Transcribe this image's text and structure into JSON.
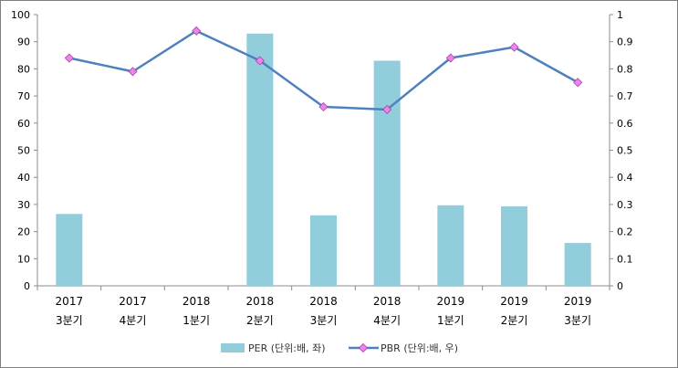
{
  "chart_data": {
    "type": "bar+line",
    "categories": [
      [
        "2017",
        "3분기"
      ],
      [
        "2017",
        "4분기"
      ],
      [
        "2018",
        "1분기"
      ],
      [
        "2018",
        "2분기"
      ],
      [
        "2018",
        "3분기"
      ],
      [
        "2018",
        "4분기"
      ],
      [
        "2019",
        "1분기"
      ],
      [
        "2019",
        "2분기"
      ],
      [
        "2019",
        "3분기"
      ]
    ],
    "series": [
      {
        "name": "PER (단위:배, 좌)",
        "type": "bar",
        "axis": "left",
        "color": "#92CDDC",
        "values": [
          26.5,
          null,
          null,
          93,
          26,
          83,
          29.7,
          29.3,
          15.8
        ]
      },
      {
        "name": "PBR (단위:배, 우)",
        "type": "line",
        "axis": "right",
        "color": "#4F81BD",
        "marker_color": "#EE82EE",
        "values": [
          0.84,
          0.79,
          0.94,
          0.83,
          0.66,
          0.65,
          0.84,
          0.88,
          0.75
        ]
      }
    ],
    "y_left": {
      "min": 0,
      "max": 100,
      "step": 10,
      "ticks": [
        "0",
        "10",
        "20",
        "30",
        "40",
        "50",
        "60",
        "70",
        "80",
        "90",
        "100"
      ]
    },
    "y_right": {
      "min": 0,
      "max": 1,
      "step": 0.1,
      "ticks": [
        "0",
        "0.1",
        "0.2",
        "0.3",
        "0.4",
        "0.5",
        "0.6",
        "0.7",
        "0.8",
        "0.9",
        "1"
      ]
    },
    "legend": "bottom",
    "grid": false
  }
}
